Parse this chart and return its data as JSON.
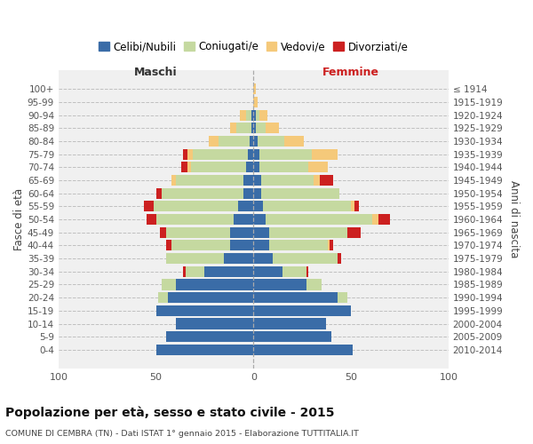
{
  "age_groups": [
    "0-4",
    "5-9",
    "10-14",
    "15-19",
    "20-24",
    "25-29",
    "30-34",
    "35-39",
    "40-44",
    "45-49",
    "50-54",
    "55-59",
    "60-64",
    "65-69",
    "70-74",
    "75-79",
    "80-84",
    "85-89",
    "90-94",
    "95-99",
    "100+"
  ],
  "birth_years": [
    "2010-2014",
    "2005-2009",
    "2000-2004",
    "1995-1999",
    "1990-1994",
    "1985-1989",
    "1980-1984",
    "1975-1979",
    "1970-1974",
    "1965-1969",
    "1960-1964",
    "1955-1959",
    "1950-1954",
    "1945-1949",
    "1940-1944",
    "1935-1939",
    "1930-1934",
    "1925-1929",
    "1920-1924",
    "1915-1919",
    "≤ 1914"
  ],
  "males": {
    "celibe": [
      50,
      45,
      40,
      50,
      44,
      40,
      25,
      15,
      12,
      12,
      10,
      8,
      5,
      5,
      4,
      3,
      2,
      1,
      1,
      0,
      0
    ],
    "coniugato": [
      0,
      0,
      0,
      0,
      5,
      7,
      10,
      30,
      30,
      33,
      40,
      43,
      42,
      35,
      28,
      28,
      16,
      8,
      3,
      0,
      0
    ],
    "vedovo": [
      0,
      0,
      0,
      0,
      0,
      0,
      0,
      0,
      0,
      0,
      0,
      0,
      0,
      2,
      2,
      3,
      5,
      3,
      3,
      0,
      0
    ],
    "divorziato": [
      0,
      0,
      0,
      0,
      0,
      0,
      1,
      0,
      3,
      3,
      5,
      5,
      3,
      0,
      3,
      2,
      0,
      0,
      0,
      0,
      0
    ]
  },
  "females": {
    "nubile": [
      51,
      40,
      37,
      50,
      43,
      27,
      15,
      10,
      8,
      8,
      6,
      5,
      4,
      4,
      3,
      3,
      2,
      1,
      1,
      0,
      0
    ],
    "coniugata": [
      0,
      0,
      0,
      0,
      5,
      8,
      12,
      33,
      30,
      40,
      55,
      45,
      40,
      27,
      25,
      27,
      14,
      5,
      2,
      0,
      0
    ],
    "vedova": [
      0,
      0,
      0,
      0,
      0,
      0,
      0,
      0,
      1,
      0,
      3,
      2,
      0,
      3,
      10,
      13,
      10,
      7,
      4,
      2,
      1
    ],
    "divorziata": [
      0,
      0,
      0,
      0,
      0,
      0,
      1,
      2,
      2,
      7,
      6,
      2,
      0,
      7,
      0,
      0,
      0,
      0,
      0,
      0,
      0
    ]
  },
  "colors": {
    "celibe": "#3a6ca7",
    "coniugato": "#c5d9a0",
    "vedovo": "#f5c97a",
    "divorziato": "#cc2020"
  },
  "legend_labels": [
    "Celibi/Nubili",
    "Coniugati/e",
    "Vedovi/e",
    "Divorziati/e"
  ],
  "title": "Popolazione per età, sesso e stato civile - 2015",
  "subtitle": "COMUNE DI CEMBRA (TN) - Dati ISTAT 1° gennaio 2015 - Elaborazione TUTTITALIA.IT",
  "label_maschi": "Maschi",
  "label_femmine": "Femmine",
  "ylabel_left": "Fasce di età",
  "ylabel_right": "Anni di nascita",
  "xlim": 100,
  "bg_color": "#ffffff",
  "plot_bg_color": "#f0f0f0"
}
